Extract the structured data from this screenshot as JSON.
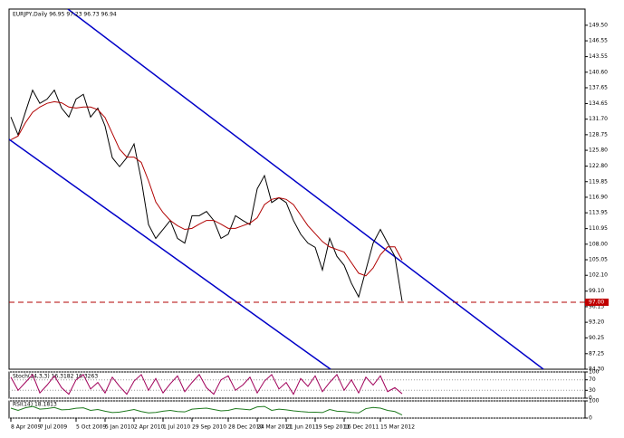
{
  "chart_data": [
    {
      "type": "line",
      "title": "EURJPY,Daily  96.95 97.23 96.73 96.94",
      "categories": [
        "8 Apr 2009",
        null,
        null,
        null,
        "7 Jul 2009",
        null,
        null,
        null,
        null,
        "5 Oct 2009",
        null,
        null,
        null,
        "5 Jan 2010",
        null,
        null,
        null,
        "2 Apr 2010",
        null,
        null,
        null,
        "1 Jul 2010",
        null,
        null,
        null,
        "29 Sep 2010",
        null,
        null,
        null,
        null,
        "28 Dec 2010",
        null,
        null,
        null,
        "24 Mar 2011",
        null,
        null,
        null,
        "21 Jun 2011",
        null,
        null,
        null,
        "19 Sep 2011",
        null,
        null,
        null,
        "16 Dec 2011",
        null,
        null,
        null,
        null,
        "15 Mar 2012",
        null,
        null,
        null
      ],
      "series": [
        {
          "color": "#000000",
          "values": [
            132.1,
            128.7,
            133.0,
            137.2,
            134.7,
            135.5,
            137.2,
            133.8,
            132.1,
            135.5,
            136.4,
            132.1,
            133.8,
            130.4,
            124.4,
            122.7,
            124.4,
            127.0,
            120.2,
            111.7,
            109.1,
            110.8,
            112.5,
            109.1,
            108.2,
            113.4,
            113.4,
            114.2,
            112.5,
            109.1,
            109.9,
            113.4,
            112.5,
            111.7,
            118.5,
            121.0,
            115.9,
            116.8,
            115.9,
            112.5,
            109.9,
            108.2,
            107.4,
            103.1,
            109.1,
            105.7,
            104.0,
            100.6,
            98.0,
            103.1,
            108.2,
            110.8,
            108.2,
            105.7,
            97.2
          ]
        },
        {
          "color": "#b00000",
          "values": [
            127.8,
            128.5,
            131.0,
            133.0,
            134.0,
            134.7,
            135.0,
            134.8,
            134.0,
            133.8,
            134.0,
            134.0,
            133.5,
            132.0,
            129.0,
            126.0,
            124.5,
            124.5,
            123.5,
            120.0,
            116.0,
            114.0,
            112.5,
            111.5,
            110.8,
            111.0,
            111.8,
            112.5,
            112.5,
            111.8,
            111.0,
            111.0,
            111.5,
            112.0,
            113.0,
            115.5,
            116.5,
            116.8,
            116.5,
            115.5,
            113.5,
            111.5,
            110.0,
            108.5,
            107.5,
            107.0,
            106.5,
            104.5,
            102.5,
            102.0,
            103.5,
            106.0,
            107.5,
            107.5,
            105.0
          ]
        }
      ],
      "ylim": [
        84.3,
        152.57
      ],
      "yticks": [
        {
          "value": 149.5,
          "label": "149.50"
        },
        {
          "value": 146.55,
          "label": "146.55"
        },
        {
          "value": 143.55,
          "label": "143.55"
        },
        {
          "value": 140.6,
          "label": "140.60"
        },
        {
          "value": 137.65,
          "label": "137.65"
        },
        {
          "value": 134.65,
          "label": "134.65"
        },
        {
          "value": 131.7,
          "label": "131.70"
        },
        {
          "value": 128.75,
          "label": "128.75"
        },
        {
          "value": 125.8,
          "label": "125.80"
        },
        {
          "value": 122.8,
          "label": "122.80"
        },
        {
          "value": 119.85,
          "label": "119.85"
        },
        {
          "value": 116.9,
          "label": "116.90"
        },
        {
          "value": 113.95,
          "label": "113.95"
        },
        {
          "value": 110.95,
          "label": "110.95"
        },
        {
          "value": 108.0,
          "label": "108.00"
        },
        {
          "value": 105.05,
          "label": "105.05"
        },
        {
          "value": 102.1,
          "label": "102.10"
        },
        {
          "value": 99.1,
          "label": "99.10"
        },
        {
          "value": 96.15,
          "label": "96.15"
        },
        {
          "value": 93.2,
          "label": "93.20"
        },
        {
          "value": 90.25,
          "label": "90.25"
        },
        {
          "value": 87.25,
          "label": "87.25"
        },
        {
          "value": 84.3,
          "label": "84.30"
        }
      ],
      "current_price": {
        "value": 97.0,
        "label": "97.00"
      }
    },
    {
      "type": "line",
      "title": "Stoch(14,3,3) 16.3182 16.3263",
      "series": [
        {
          "color": "#a0005a",
          "values": [
            80,
            30,
            60,
            90,
            20,
            50,
            85,
            40,
            15,
            70,
            90,
            35,
            60,
            20,
            80,
            45,
            15,
            65,
            90,
            30,
            75,
            20,
            55,
            85,
            25,
            60,
            90,
            40,
            15,
            70,
            85,
            30,
            50,
            80,
            20,
            65,
            90,
            35,
            60,
            15,
            75,
            45,
            85,
            25,
            60,
            90,
            30,
            70,
            20,
            80,
            50,
            85,
            25,
            40,
            17
          ]
        }
      ],
      "ylim": [
        0,
        100
      ],
      "yticks": [
        100,
        70,
        30,
        0
      ]
    },
    {
      "type": "line",
      "title": "RSI(14) 18.1813",
      "series": [
        {
          "color": "#1e7a1e",
          "values": [
            58,
            45,
            60,
            68,
            52,
            55,
            62,
            48,
            50,
            57,
            60,
            45,
            50,
            40,
            32,
            35,
            42,
            50,
            38,
            30,
            33,
            40,
            45,
            38,
            36,
            52,
            55,
            58,
            50,
            42,
            45,
            55,
            52,
            48,
            65,
            68,
            45,
            52,
            48,
            42,
            38,
            35,
            34,
            32,
            50,
            40,
            38,
            33,
            30,
            55,
            62,
            58,
            45,
            38,
            18
          ]
        }
      ],
      "ylim": [
        0,
        100
      ],
      "yticks": [
        100,
        0
      ]
    }
  ]
}
